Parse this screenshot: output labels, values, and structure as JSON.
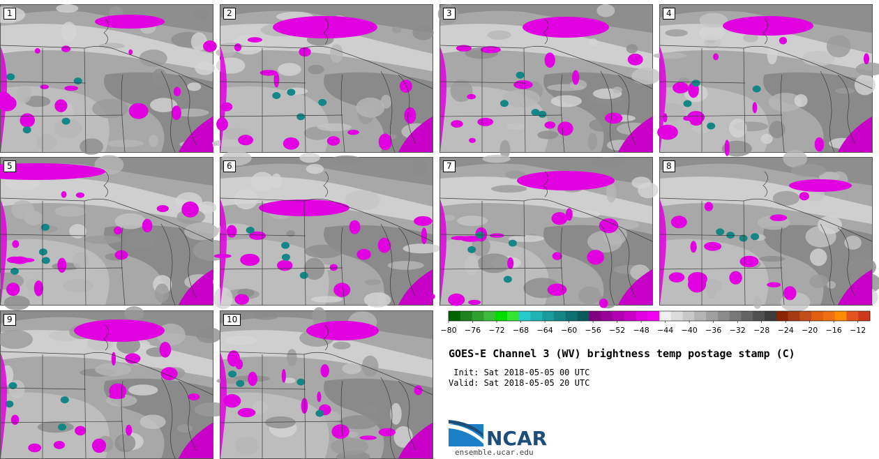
{
  "panels": [
    {
      "label": "1"
    },
    {
      "label": "2"
    },
    {
      "label": "3"
    },
    {
      "label": "4"
    },
    {
      "label": "5"
    },
    {
      "label": "6"
    },
    {
      "label": "7"
    },
    {
      "label": "8"
    },
    {
      "label": "9"
    },
    {
      "label": "10"
    }
  ],
  "colorbar": {
    "ticks": [
      "−80",
      "−76",
      "−72",
      "−68",
      "−64",
      "−60",
      "−56",
      "−52",
      "−48",
      "−44",
      "−40",
      "−36",
      "−32",
      "−28",
      "−24",
      "−20",
      "−16",
      "−12"
    ],
    "colors": [
      "#006400",
      "#1e821e",
      "#2ea02e",
      "#3cbe3c",
      "#00dc00",
      "#33e633",
      "#27c9c9",
      "#1fb3b3",
      "#1a9c9c",
      "#148686",
      "#0e7070",
      "#0a5c5c",
      "#800080",
      "#990099",
      "#b000b0",
      "#c800c8",
      "#e000e0",
      "#f200f2",
      "#f0f0f0",
      "#dcdcdc",
      "#c8c8c8",
      "#b4b4b4",
      "#a0a0a0",
      "#8c8c8c",
      "#787878",
      "#646464",
      "#505050",
      "#3c3c3c",
      "#8b2500",
      "#a63a12",
      "#c24e1c",
      "#e06010",
      "#ee7010",
      "#ff8c00",
      "#e5531e",
      "#cc3a1a"
    ]
  },
  "title": "GOES-E Channel 3 (WV) brightness temp postage stamp (C)",
  "init": " Init: Sat 2018-05-05 00 UTC",
  "valid": "Valid: Sat 2018-05-05 20 UTC",
  "logo": {
    "text": "NCAR",
    "site": "ensemble.ucar.edu"
  }
}
